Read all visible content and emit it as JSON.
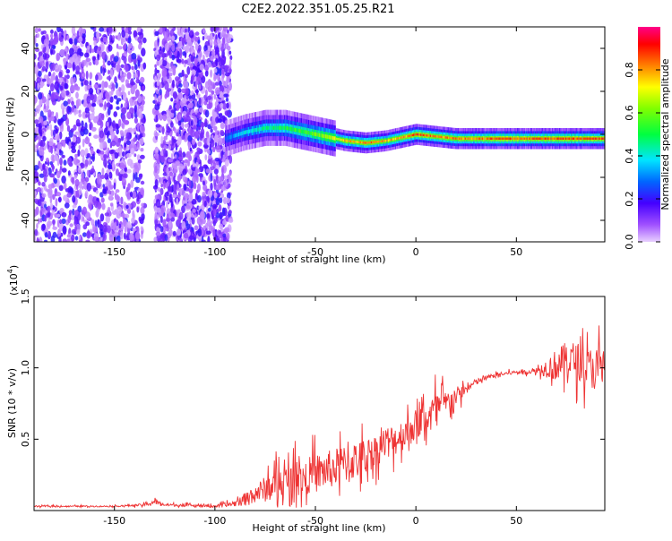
{
  "title": "C2E2.2022.351.05.25.R21",
  "colors": {
    "signal": "#ee3333",
    "frame": "#000000",
    "background": "#ffffff"
  },
  "chart_data": [
    {
      "type": "heatmap",
      "title": "C2E2.2022.351.05.25.R21",
      "xlabel": "Height of straight line (km)",
      "ylabel": "Frequency (Hz)",
      "xlim": [
        -190,
        94
      ],
      "ylim": [
        -50,
        50
      ],
      "xticks": [
        -150,
        -100,
        -50,
        0,
        50
      ],
      "yticks": [
        -40,
        -20,
        0,
        20,
        40
      ],
      "x_tick_labels": [
        "-150",
        "-100",
        "-50",
        "0",
        "50"
      ],
      "y_tick_labels": [
        "-40",
        "-20",
        "0",
        "20",
        "40"
      ],
      "colorbar": {
        "label": "Normalized spectral amplitude",
        "range": [
          0,
          1
        ],
        "ticks": [
          0.0,
          0.2,
          0.4,
          0.6,
          0.8
        ],
        "tick_labels": [
          "0.0",
          "0.2",
          "0.4",
          "0.6",
          "0.8"
        ],
        "colormap": "rainbow"
      },
      "noise_regions": [
        {
          "x": [
            -190,
            -135
          ],
          "amplitude": 0.15
        },
        {
          "x": [
            -130,
            -92
          ],
          "amplitude": 0.15
        }
      ],
      "ridge": {
        "x": [
          -95,
          -85,
          -75,
          -65,
          -55,
          -45,
          -35,
          -25,
          -15,
          -5,
          0,
          10,
          20,
          30,
          40,
          50,
          60,
          70,
          80,
          94
        ],
        "frequency": [
          -2,
          1,
          3,
          3,
          1,
          -1,
          -3,
          -4,
          -3,
          -1,
          0,
          -1,
          -2,
          -2,
          -2,
          -2,
          -2,
          -2,
          -2,
          -2
        ],
        "amplitude": [
          0.3,
          0.4,
          0.5,
          0.55,
          0.6,
          0.7,
          0.8,
          0.85,
          0.8,
          0.85,
          0.9,
          0.85,
          0.85,
          0.85,
          0.9,
          0.9,
          0.9,
          0.9,
          0.9,
          0.9
        ]
      }
    },
    {
      "type": "line",
      "xlabel": "Height of straight line (km)",
      "ylabel": "SNR (10 * v/v)",
      "y_multiplier_label": "(x10",
      "y_multiplier_exp": "4",
      "xlim": [
        -190,
        94
      ],
      "ylim": [
        0,
        1.5
      ],
      "xticks": [
        -150,
        -100,
        -50,
        0,
        50
      ],
      "yticks": [
        0.5,
        1.0,
        1.5
      ],
      "x_tick_labels": [
        "-150",
        "-100",
        "-50",
        "0",
        "50"
      ],
      "y_tick_labels": [
        "0.5",
        "1.0",
        "1.5"
      ],
      "series": [
        {
          "x": [
            -190,
            -150,
            -135,
            -130,
            -125,
            -100,
            -90,
            -85,
            -80,
            -75,
            -70,
            -65,
            -60,
            -55,
            -50,
            -45,
            -40,
            -35,
            -30,
            -25,
            -20,
            -15,
            -10,
            -5,
            0,
            5,
            10,
            15,
            20,
            25,
            30,
            35,
            40,
            45,
            50,
            55,
            60,
            65,
            70,
            75,
            80,
            85,
            90,
            94
          ],
          "y": [
            0.03,
            0.03,
            0.04,
            0.06,
            0.04,
            0.03,
            0.05,
            0.08,
            0.12,
            0.15,
            0.18,
            0.2,
            0.22,
            0.24,
            0.26,
            0.28,
            0.3,
            0.33,
            0.35,
            0.38,
            0.42,
            0.48,
            0.5,
            0.55,
            0.6,
            0.65,
            0.7,
            0.75,
            0.8,
            0.85,
            0.9,
            0.93,
            0.95,
            0.96,
            0.97,
            0.97,
            0.98,
            1.0,
            1.02,
            1.05,
            1.05,
            1.0,
            1.0,
            1.0
          ],
          "noise_amplitude": [
            0.01,
            0.01,
            0.02,
            0.04,
            0.02,
            0.02,
            0.05,
            0.1,
            0.15,
            0.2,
            0.25,
            0.25,
            0.3,
            0.28,
            0.3,
            0.3,
            0.3,
            0.3,
            0.3,
            0.28,
            0.25,
            0.25,
            0.25,
            0.25,
            0.25,
            0.25,
            0.3,
            0.2,
            0.15,
            0.08,
            0.05,
            0.04,
            0.03,
            0.03,
            0.03,
            0.03,
            0.04,
            0.15,
            0.25,
            0.3,
            0.3,
            0.3,
            0.35,
            0.35
          ]
        }
      ]
    }
  ]
}
